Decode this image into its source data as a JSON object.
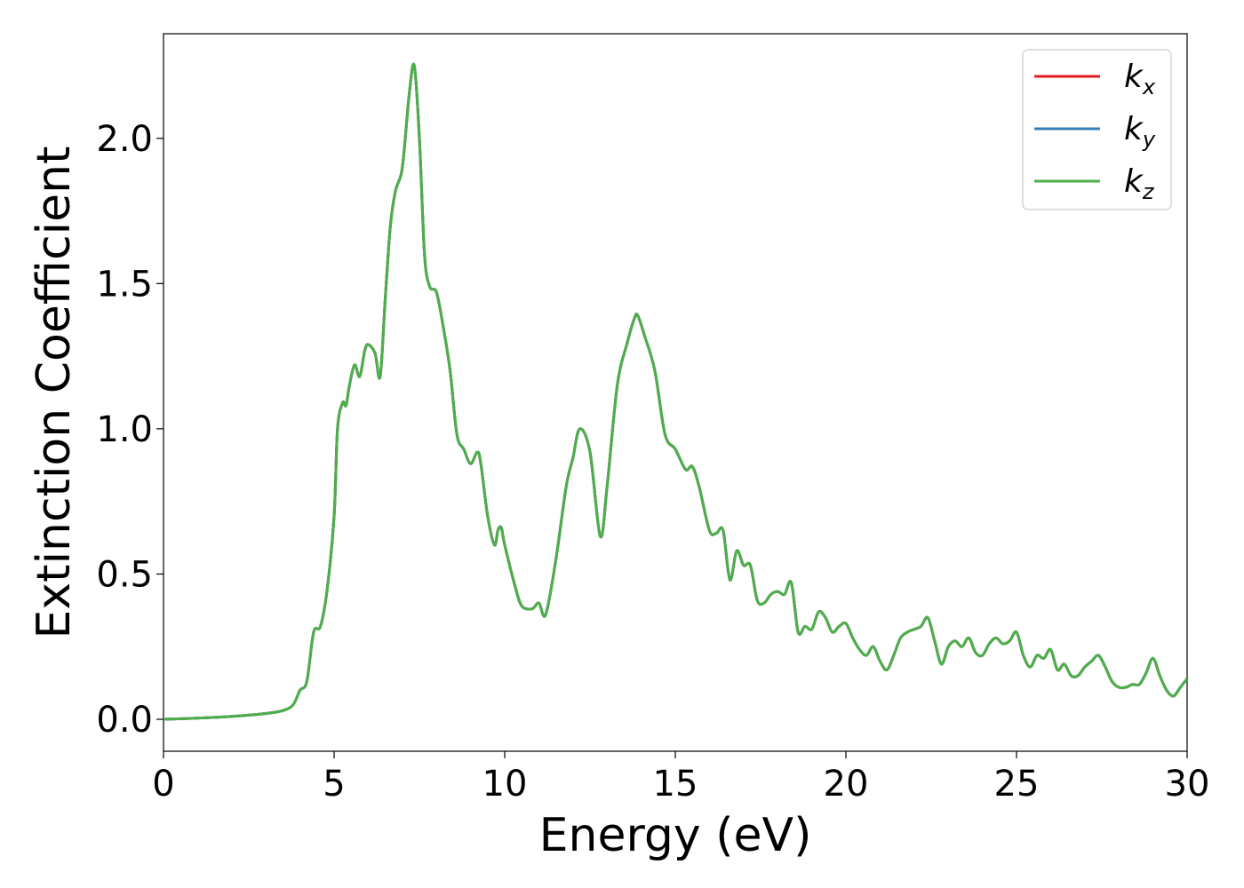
{
  "chart_data": {
    "type": "line",
    "xlabel": "Energy (eV)",
    "ylabel": "Extinction Coefficient",
    "xlim": [
      0,
      30
    ],
    "ylim": [
      -0.11,
      2.36
    ],
    "xticks": [
      0,
      5,
      10,
      15,
      20,
      25,
      30
    ],
    "xtick_labels": [
      "0",
      "5",
      "10",
      "15",
      "20",
      "25",
      "30"
    ],
    "yticks": [
      0.0,
      0.5,
      1.0,
      1.5,
      2.0
    ],
    "ytick_labels": [
      "0.0",
      "0.5",
      "1.0",
      "1.5",
      "2.0"
    ],
    "grid": false,
    "legend_position": "top-right",
    "x": [
      0,
      1,
      2,
      3,
      3.5,
      3.8,
      4.0,
      4.2,
      4.4,
      4.6,
      4.8,
      5.0,
      5.1,
      5.25,
      5.35,
      5.45,
      5.6,
      5.75,
      5.9,
      6.0,
      6.2,
      6.35,
      6.5,
      6.65,
      6.8,
      7.0,
      7.2,
      7.35,
      7.5,
      7.65,
      7.8,
      8.0,
      8.2,
      8.4,
      8.6,
      8.8,
      9.0,
      9.2,
      9.3,
      9.5,
      9.7,
      9.8,
      9.9,
      10.0,
      10.3,
      10.5,
      10.8,
      11.0,
      11.2,
      11.5,
      11.8,
      12.0,
      12.2,
      12.5,
      12.8,
      13.0,
      13.3,
      13.6,
      13.8,
      13.9,
      14.1,
      14.4,
      14.7,
      15.0,
      15.3,
      15.5,
      15.7,
      16.0,
      16.2,
      16.4,
      16.6,
      16.8,
      17.0,
      17.2,
      17.4,
      17.6,
      17.8,
      18.0,
      18.2,
      18.4,
      18.6,
      18.8,
      19.0,
      19.2,
      19.4,
      19.6,
      19.8,
      20.0,
      20.2,
      20.4,
      20.6,
      20.8,
      21.0,
      21.2,
      21.4,
      21.6,
      21.8,
      22.0,
      22.2,
      22.4,
      22.6,
      22.8,
      23.0,
      23.2,
      23.4,
      23.6,
      23.8,
      24.0,
      24.2,
      24.4,
      24.6,
      24.8,
      25.0,
      25.2,
      25.4,
      25.6,
      25.8,
      26.0,
      26.2,
      26.4,
      26.6,
      26.8,
      27.0,
      27.2,
      27.4,
      27.6,
      27.8,
      28.0,
      28.2,
      28.4,
      28.6,
      28.8,
      29.0,
      29.2,
      29.4,
      29.6,
      29.8,
      30.0
    ],
    "series": [
      {
        "name": "k_x",
        "label_base": "k",
        "label_sub": "x",
        "color": "#e41a1c",
        "visible_line": false
      },
      {
        "name": "k_y",
        "label_base": "k",
        "label_sub": "y",
        "color": "#377eb8",
        "visible_line": false
      },
      {
        "name": "k_z",
        "label_base": "k",
        "label_sub": "z",
        "color": "#4daf4a",
        "visible_line": true
      }
    ],
    "values": [
      0.0,
      0.004,
      0.01,
      0.02,
      0.03,
      0.05,
      0.1,
      0.13,
      0.3,
      0.32,
      0.45,
      0.7,
      1.0,
      1.09,
      1.08,
      1.15,
      1.22,
      1.18,
      1.27,
      1.29,
      1.26,
      1.18,
      1.45,
      1.7,
      1.82,
      1.9,
      2.15,
      2.25,
      2.0,
      1.6,
      1.49,
      1.47,
      1.35,
      1.2,
      0.98,
      0.93,
      0.88,
      0.92,
      0.88,
      0.7,
      0.6,
      0.65,
      0.66,
      0.6,
      0.46,
      0.39,
      0.38,
      0.4,
      0.36,
      0.55,
      0.8,
      0.9,
      1.0,
      0.92,
      0.63,
      0.8,
      1.15,
      1.3,
      1.38,
      1.39,
      1.32,
      1.2,
      0.98,
      0.93,
      0.86,
      0.87,
      0.8,
      0.65,
      0.64,
      0.65,
      0.48,
      0.58,
      0.53,
      0.53,
      0.41,
      0.4,
      0.43,
      0.44,
      0.43,
      0.47,
      0.3,
      0.32,
      0.31,
      0.37,
      0.35,
      0.3,
      0.32,
      0.33,
      0.28,
      0.24,
      0.22,
      0.25,
      0.2,
      0.17,
      0.22,
      0.28,
      0.3,
      0.31,
      0.32,
      0.35,
      0.27,
      0.19,
      0.25,
      0.27,
      0.25,
      0.28,
      0.23,
      0.22,
      0.26,
      0.28,
      0.26,
      0.27,
      0.3,
      0.22,
      0.18,
      0.22,
      0.21,
      0.24,
      0.17,
      0.19,
      0.15,
      0.15,
      0.18,
      0.2,
      0.22,
      0.18,
      0.13,
      0.11,
      0.11,
      0.12,
      0.12,
      0.16,
      0.21,
      0.15,
      0.1,
      0.08,
      0.11,
      0.14
    ]
  }
}
